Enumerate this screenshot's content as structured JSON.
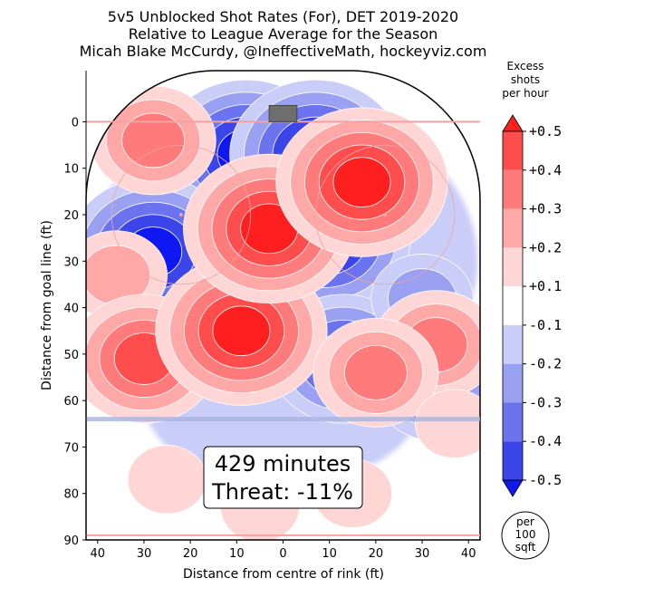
{
  "header": {
    "title": "5v5 Unblocked Shot Rates (For), DET 2019-2020",
    "subtitle": "Relative to League Average for the Season",
    "author": "Micah Blake McCurdy, @IneffectiveMath, hockeyviz.com"
  },
  "chart_data": {
    "type": "heatmap",
    "xlabel": "Distance from centre of rink (ft)",
    "ylabel": "Distance from goal line (ft)",
    "xlim": [
      -42.5,
      42.5
    ],
    "ylim": [
      -11,
      90
    ],
    "x_ticks": [
      -40,
      -30,
      -20,
      -10,
      0,
      10,
      20,
      30,
      40
    ],
    "x_tick_labels": [
      "40",
      "30",
      "20",
      "10",
      "0",
      "10",
      "20",
      "30",
      "40"
    ],
    "y_ticks": [
      0,
      10,
      20,
      30,
      40,
      50,
      60,
      70,
      80,
      90
    ],
    "y_tick_labels": [
      "0",
      "10",
      "20",
      "30",
      "40",
      "50",
      "60",
      "70",
      "80",
      "90"
    ],
    "colorbar": {
      "label_lines": [
        "Excess",
        "shots",
        "per hour"
      ],
      "levels": [
        0.5,
        0.4,
        0.3,
        0.2,
        0.1,
        -0.1,
        -0.2,
        -0.3,
        -0.4,
        -0.5
      ],
      "level_labels": [
        "+0.5",
        "+0.4",
        "+0.3",
        "+0.2",
        "+0.1",
        "-0.1",
        "-0.2",
        "-0.3",
        "-0.4",
        "-0.5"
      ],
      "colors": [
        "#ff1f1f",
        "#ff4d4d",
        "#ff7a7a",
        "#ffa8a8",
        "#ffd6d6",
        "#ffffff",
        "#c9cdf7",
        "#9aa1f2",
        "#6b73ee",
        "#3b45ea",
        "#0f17f2"
      ],
      "unit_lines": [
        "per",
        "100",
        "sqft"
      ]
    },
    "annotation": {
      "minutes": "429 minutes",
      "threat": "Threat: -11%"
    },
    "hotspots": [
      {
        "x": -28,
        "y": 4,
        "level": 0.3
      },
      {
        "x": -36,
        "y": 33,
        "level": 0.2
      },
      {
        "x": -30,
        "y": 51,
        "level": 0.4
      },
      {
        "x": -9,
        "y": 45,
        "level": 0.5
      },
      {
        "x": -3,
        "y": 23,
        "level": 0.5
      },
      {
        "x": 17,
        "y": 13,
        "level": 0.5
      },
      {
        "x": 33,
        "y": 48,
        "level": 0.3
      },
      {
        "x": 20,
        "y": 54,
        "level": 0.3
      },
      {
        "x": 37,
        "y": 65,
        "level": 0.1
      },
      {
        "x": -25,
        "y": 77,
        "level": 0.1
      },
      {
        "x": 15,
        "y": 80,
        "level": 0.1
      },
      {
        "x": -5,
        "y": 83,
        "level": 0.1
      }
    ],
    "coldspots": [
      {
        "x": -8,
        "y": 7,
        "level": -0.5
      },
      {
        "x": 7,
        "y": 7,
        "level": -0.5
      },
      {
        "x": -28,
        "y": 28,
        "level": -0.5
      },
      {
        "x": 9,
        "y": 25,
        "level": -0.5
      },
      {
        "x": 13,
        "y": 51,
        "level": -0.4
      },
      {
        "x": 33,
        "y": 57,
        "level": -0.3
      },
      {
        "x": 30,
        "y": 38,
        "level": -0.2
      }
    ]
  }
}
